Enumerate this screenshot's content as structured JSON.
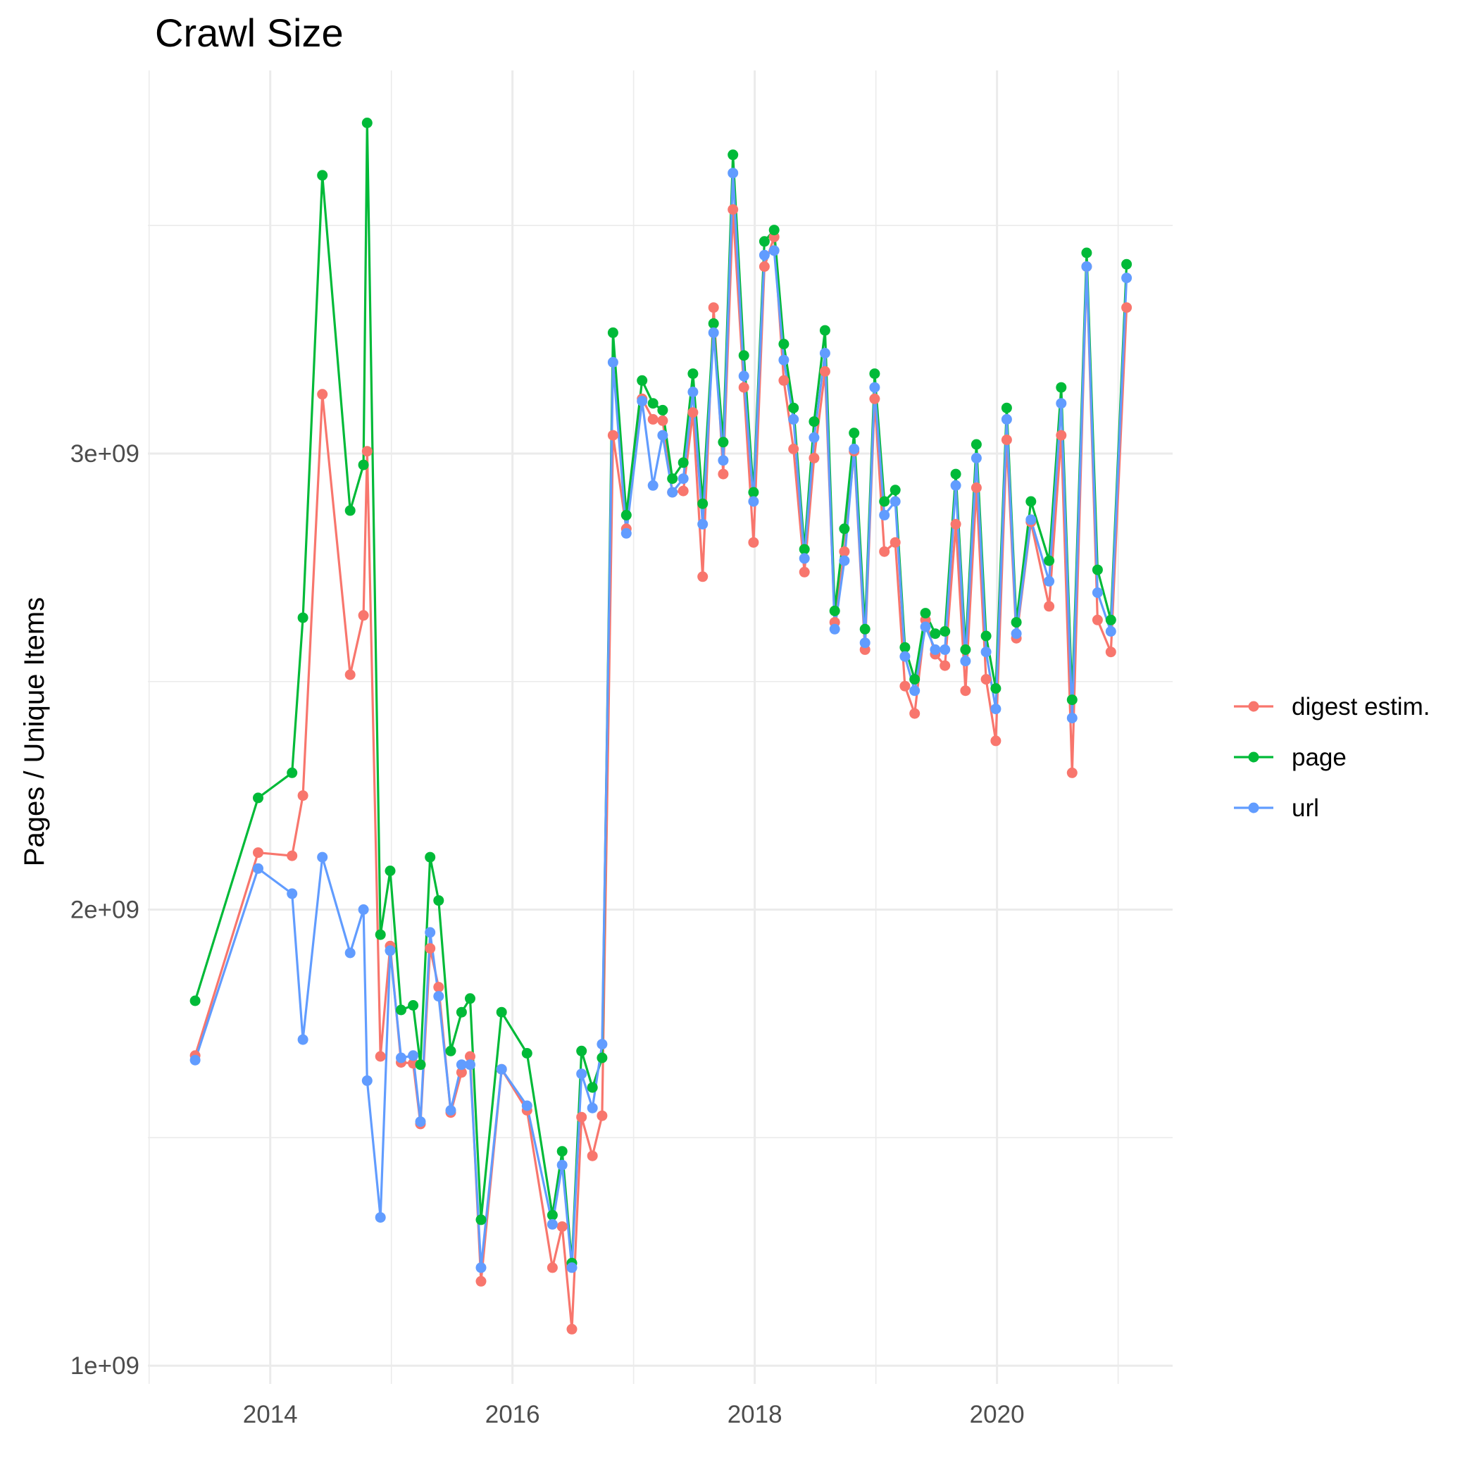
{
  "chart_data": {
    "type": "line",
    "title": "Crawl Size",
    "xlabel": "",
    "ylabel": "Pages / Unique Items",
    "x_ticks": [
      2014,
      2016,
      2018,
      2020
    ],
    "x_tick_labels": [
      "2014",
      "2016",
      "2018",
      "2020"
    ],
    "y_ticks": [
      1000000000,
      2000000000,
      3000000000
    ],
    "y_tick_labels": [
      "1e+09",
      "2e+09",
      "3e+09"
    ],
    "xlim": [
      2012.99,
      2021.45
    ],
    "ylim": [
      960000000,
      3840000000
    ],
    "grid": true,
    "legend_position": "right",
    "x": [
      2013.38,
      2013.9,
      2014.18,
      2014.27,
      2014.43,
      2014.66,
      2014.77,
      2014.8,
      2014.91,
      2014.99,
      2015.08,
      2015.18,
      2015.24,
      2015.32,
      2015.39,
      2015.49,
      2015.58,
      2015.65,
      2015.74,
      2015.91,
      2016.12,
      2016.33,
      2016.41,
      2016.49,
      2016.57,
      2016.66,
      2016.74,
      2016.83,
      2016.94,
      2017.07,
      2017.16,
      2017.24,
      2017.32,
      2017.41,
      2017.49,
      2017.57,
      2017.66,
      2017.74,
      2017.82,
      2017.91,
      2017.99,
      2018.08,
      2018.16,
      2018.24,
      2018.32,
      2018.41,
      2018.49,
      2018.58,
      2018.66,
      2018.74,
      2018.82,
      2018.91,
      2018.99,
      2019.07,
      2019.16,
      2019.24,
      2019.32,
      2019.41,
      2019.49,
      2019.57,
      2019.66,
      2019.74,
      2019.83,
      2019.91,
      2019.99,
      2020.08,
      2020.16,
      2020.28,
      2020.43,
      2020.53,
      2020.62,
      2020.74,
      2020.83,
      2020.94,
      2021.07
    ],
    "series": [
      {
        "name": "digest estim.",
        "color": "#F8766D",
        "values": [
          1680000000,
          2125000000,
          2118000000,
          2250000000,
          3130000000,
          2515000000,
          2645000000,
          3005000000,
          1678000000,
          1920000000,
          1665000000,
          1663000000,
          1530000000,
          1915000000,
          1830000000,
          1555000000,
          1643000000,
          1678000000,
          1185000000,
          1650000000,
          1560000000,
          1215000000,
          1305000000,
          1080000000,
          1545000000,
          1460000000,
          1548000000,
          3040000000,
          2835000000,
          3120000000,
          3075000000,
          3072000000,
          2915000000,
          2918000000,
          3090000000,
          2730000000,
          3320000000,
          2955000000,
          3535000000,
          3145000000,
          2805000000,
          3410000000,
          3475000000,
          3160000000,
          3010000000,
          2740000000,
          2990000000,
          3180000000,
          2630000000,
          2785000000,
          3005000000,
          2570000000,
          3120000000,
          2785000000,
          2805000000,
          2490000000,
          2430000000,
          2635000000,
          2560000000,
          2535000000,
          2845000000,
          2480000000,
          2925000000,
          2505000000,
          2370000000,
          3030000000,
          2595000000,
          2850000000,
          2665000000,
          3040000000,
          2300000000,
          3410000000,
          2635000000,
          2565000000,
          3320000000
        ]
      },
      {
        "name": "page",
        "color": "#00BA38",
        "values": [
          1800000000,
          2245000000,
          2300000000,
          2640000000,
          3610000000,
          2875000000,
          2975000000,
          3725000000,
          1945000000,
          2085000000,
          1780000000,
          1790000000,
          1660000000,
          2115000000,
          2020000000,
          1690000000,
          1775000000,
          1805000000,
          1320000000,
          1775000000,
          1685000000,
          1330000000,
          1470000000,
          1225000000,
          1690000000,
          1610000000,
          1675000000,
          3265000000,
          2865000000,
          3160000000,
          3110000000,
          3095000000,
          2945000000,
          2980000000,
          3175000000,
          2890000000,
          3285000000,
          3025000000,
          3655000000,
          3215000000,
          2915000000,
          3465000000,
          3490000000,
          3240000000,
          3100000000,
          2790000000,
          3070000000,
          3270000000,
          2655000000,
          2835000000,
          3045000000,
          2615000000,
          3175000000,
          2895000000,
          2920000000,
          2575000000,
          2505000000,
          2650000000,
          2605000000,
          2610000000,
          2955000000,
          2570000000,
          3020000000,
          2600000000,
          2485000000,
          3100000000,
          2630000000,
          2895000000,
          2765000000,
          3145000000,
          2460000000,
          3440000000,
          2745000000,
          2635000000,
          3415000000
        ]
      },
      {
        "name": "url",
        "color": "#619CFF",
        "values": [
          1670000000,
          2090000000,
          2035000000,
          1715000000,
          2115000000,
          1905000000,
          2000000000,
          1625000000,
          1325000000,
          1910000000,
          1675000000,
          1680000000,
          1535000000,
          1950000000,
          1810000000,
          1560000000,
          1660000000,
          1660000000,
          1215000000,
          1650000000,
          1570000000,
          1310000000,
          1440000000,
          1215000000,
          1640000000,
          1565000000,
          1705000000,
          3200000000,
          2825000000,
          3115000000,
          2930000000,
          3040000000,
          2915000000,
          2945000000,
          3135000000,
          2845000000,
          3265000000,
          2985000000,
          3615000000,
          3170000000,
          2895000000,
          3435000000,
          3445000000,
          3205000000,
          3075000000,
          2770000000,
          3035000000,
          3220000000,
          2615000000,
          2765000000,
          3010000000,
          2585000000,
          3145000000,
          2865000000,
          2895000000,
          2555000000,
          2480000000,
          2620000000,
          2570000000,
          2570000000,
          2930000000,
          2545000000,
          2990000000,
          2565000000,
          2440000000,
          3075000000,
          2605000000,
          2855000000,
          2720000000,
          3110000000,
          2420000000,
          3410000000,
          2695000000,
          2610000000,
          3385000000
        ]
      }
    ]
  }
}
